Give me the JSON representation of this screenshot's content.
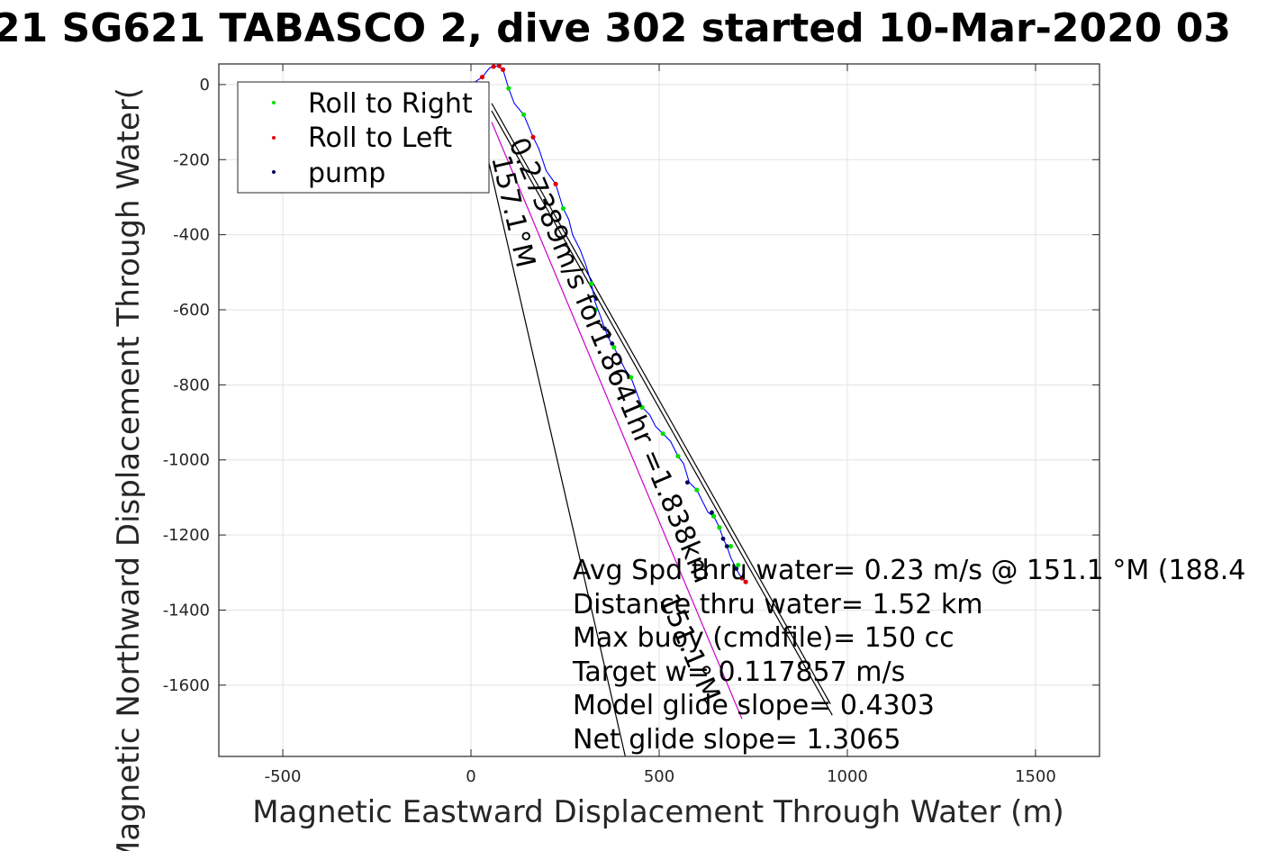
{
  "chart_data": {
    "type": "scatter",
    "title": "21 SG621 TABASCO 2, dive 302 started 10-Mar-2020 03",
    "xlabel": "Magnetic Eastward Displacement Through Water (m)",
    "ylabel": "Magnetic Northward Displacement Through Water(",
    "xlim": [
      -670,
      1670
    ],
    "ylim": [
      -1790,
      55
    ],
    "xticks": [
      -500,
      0,
      500,
      1000,
      1500
    ],
    "yticks": [
      0,
      -200,
      -400,
      -600,
      -800,
      -1000,
      -1200,
      -1400,
      -1600
    ],
    "grid": true,
    "legend_position": "top-left",
    "legend": [
      {
        "label": "Roll to Right",
        "color": "#00e000"
      },
      {
        "label": "Roll to Left",
        "color": "#e00000"
      },
      {
        "label": "pump",
        "color": "#000060"
      }
    ],
    "track": {
      "color": "#0000ff",
      "x": [
        0,
        30,
        50,
        70,
        85,
        100,
        115,
        140,
        165,
        180,
        200,
        225,
        245,
        260,
        270,
        290,
        305,
        320,
        330,
        345,
        355,
        368,
        380,
        395,
        410,
        425,
        440,
        455,
        475,
        490,
        510,
        530,
        550,
        565,
        580,
        600,
        615,
        630,
        645,
        660,
        670,
        680,
        690,
        700,
        710,
        720,
        730
      ],
      "y": [
        0,
        20,
        45,
        50,
        40,
        -10,
        -50,
        -80,
        -140,
        -170,
        -230,
        -265,
        -330,
        -360,
        -400,
        -440,
        -480,
        -530,
        -580,
        -620,
        -650,
        -680,
        -700,
        -730,
        -760,
        -780,
        -820,
        -860,
        -880,
        -910,
        -930,
        -950,
        -990,
        -1010,
        -1060,
        -1080,
        -1110,
        -1140,
        -1150,
        -1180,
        -1210,
        -1230,
        -1260,
        -1280,
        -1300,
        -1315,
        -1325
      ]
    },
    "roll_right_points": [
      [
        100,
        -10
      ],
      [
        140,
        -80
      ],
      [
        245,
        -330
      ],
      [
        320,
        -530
      ],
      [
        330,
        -600
      ],
      [
        380,
        -700
      ],
      [
        425,
        -780
      ],
      [
        455,
        -860
      ],
      [
        510,
        -930
      ],
      [
        550,
        -990
      ],
      [
        600,
        -1080
      ],
      [
        645,
        -1150
      ],
      [
        660,
        -1180
      ],
      [
        690,
        -1230
      ],
      [
        710,
        -1280
      ]
    ],
    "roll_left_points": [
      [
        30,
        20
      ],
      [
        60,
        48
      ],
      [
        75,
        50
      ],
      [
        85,
        40
      ],
      [
        165,
        -140
      ],
      [
        225,
        -265
      ],
      [
        720,
        -1315
      ],
      [
        730,
        -1325
      ]
    ],
    "pump_points": [
      [
        355,
        -650
      ],
      [
        365,
        -670
      ],
      [
        375,
        -690
      ],
      [
        575,
        -1060
      ],
      [
        640,
        -1140
      ],
      [
        670,
        -1210
      ],
      [
        680,
        -1230
      ],
      [
        705,
        -1290
      ]
    ],
    "lines": [
      {
        "name": "heading-157",
        "color": "#000000",
        "x": [
          0,
          410
        ],
        "y": [
          0,
          -1790
        ]
      },
      {
        "name": "heading-151",
        "color": "#000000",
        "x": [
          55,
          955
        ],
        "y": [
          -50,
          -1650
        ]
      },
      {
        "name": "heading-mean",
        "color": "#000000",
        "x": [
          55,
          960
        ],
        "y": [
          -70,
          -1680
        ]
      },
      {
        "name": "target-course",
        "color": "#cc00cc",
        "x": [
          55,
          720
        ],
        "y": [
          -100,
          -1690
        ]
      }
    ],
    "rotated_labels": [
      {
        "text": "157.1°M",
        "x": 55,
        "y": -195,
        "angle_deg": 77
      },
      {
        "text": "0.27389m/s for1.8641hr =1.838km",
        "x": 100,
        "y": -155,
        "angle_deg": 67
      },
      {
        "text": "151.1°M",
        "x": 500,
        "y": -1370,
        "angle_deg": 67
      }
    ],
    "annotations": [
      "Avg Spd thru water=  0.23 m/s @ 151.1 °M (188.4",
      "Distance thru water=  1.52 km",
      "Max buoy (cmdfile)= 150 cc",
      "Target w= 0.117857 m/s",
      "Model glide slope= 0.4303",
      "Net glide slope= 1.3065"
    ]
  }
}
